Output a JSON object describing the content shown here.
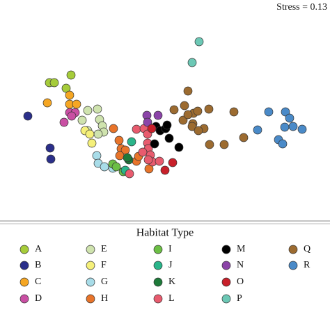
{
  "chart_data": {
    "type": "scatter",
    "annotation": "Stress = 0.13",
    "legend_title": "Habitat Type",
    "xlim": [
      0,
      474
    ],
    "ylim": [
      0,
      315
    ],
    "series": [
      {
        "name": "A",
        "color": "#a6cc3a",
        "x": [
          71,
          78,
          102,
          95
        ],
        "y": [
          196,
          196,
          207,
          188
        ]
      },
      {
        "name": "B",
        "color": "#2b2f8a",
        "x": [
          40,
          72,
          73
        ],
        "y": [
          148,
          102,
          86
        ]
      },
      {
        "name": "C",
        "color": "#f5a623",
        "x": [
          68,
          100,
          100,
          110
        ],
        "y": [
          167,
          178,
          165,
          165
        ]
      },
      {
        "name": "D",
        "color": "#c94fa3",
        "x": [
          92,
          100,
          108,
          103
        ],
        "y": [
          139,
          153,
          153,
          148
        ]
      },
      {
        "name": "E",
        "color": "#cfe3ae",
        "x": [
          126,
          140,
          118,
          143,
          147,
          149,
          141,
          126
        ],
        "y": [
          156,
          158,
          142,
          143,
          134,
          125,
          122,
          127
        ]
      },
      {
        "name": "F",
        "color": "#f5f07a",
        "x": [
          122,
          129,
          132
        ],
        "y": [
          127,
          122,
          109
        ]
      },
      {
        "name": "G",
        "color": "#a8dce8",
        "x": [
          139,
          141,
          150,
          162
        ],
        "y": [
          91,
          80,
          75,
          73
        ]
      },
      {
        "name": "H",
        "color": "#e8742a",
        "x": [
          163,
          171,
          174,
          180,
          172,
          196,
          214,
          199
        ],
        "y": [
          130,
          113,
          101,
          99,
          91,
          83,
          72,
          90
        ]
      },
      {
        "name": "I",
        "color": "#6cbf45",
        "x": [
          162,
          167,
          177
        ],
        "y": [
          79,
          75,
          68
        ]
      },
      {
        "name": "J",
        "color": "#2ab58a",
        "x": [
          189,
          180
        ],
        "y": [
          111,
          70
        ]
      },
      {
        "name": "K",
        "color": "#1e7a3a",
        "x": [
          185,
          183
        ],
        "y": [
          85,
          88
        ]
      },
      {
        "name": "L",
        "color": "#e85b6e",
        "x": [
          186,
          196,
          207,
          212,
          213,
          216,
          212,
          219,
          229,
          213,
          205
        ],
        "y": [
          65,
          129,
          130,
          109,
          101,
          92,
          122,
          82,
          83,
          85,
          96
        ]
      },
      {
        "name": "M",
        "color": "#000000",
        "x": [
          224,
          230,
          238,
          240,
          222,
          243,
          257
        ],
        "y": [
          133,
          127,
          130,
          135,
          108,
          116,
          103
        ]
      },
      {
        "name": "N",
        "color": "#8b44a8",
        "x": [
          211,
          212,
          227
        ],
        "y": [
          149,
          139,
          149
        ]
      },
      {
        "name": "O",
        "color": "#c8202a",
        "x": [
          218,
          248,
          237
        ],
        "y": [
          130,
          81,
          70
        ]
      },
      {
        "name": "P",
        "color": "#6cc8b5",
        "x": [
          286,
          276
        ],
        "y": [
          255,
          225
        ]
      },
      {
        "name": "Q",
        "color": "#9c6b30",
        "x": [
          270,
          265,
          250,
          278,
          284,
          300,
          263,
          277,
          276,
          293,
          285,
          301,
          322,
          336,
          350,
          270
        ],
        "y": [
          184,
          163,
          157,
          152,
          155,
          158,
          142,
          137,
          133,
          130,
          127,
          107,
          107,
          154,
          117,
          150
        ]
      },
      {
        "name": "R",
        "color": "#4a8ac8",
        "x": [
          386,
          410,
          416,
          409,
          421,
          434,
          370,
          400,
          406
        ],
        "y": [
          154,
          154,
          145,
          132,
          133,
          129,
          128,
          114,
          108
        ]
      }
    ]
  }
}
